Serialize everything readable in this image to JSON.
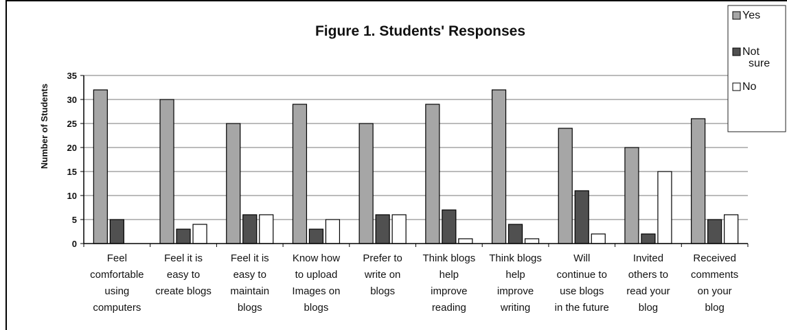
{
  "chart_data": {
    "type": "bar",
    "title": "Figure 1.  Students' Responses",
    "ylabel": "Number of Students",
    "xlabel": "",
    "ylim": [
      0,
      35
    ],
    "yticks": [
      0,
      5,
      10,
      15,
      20,
      25,
      30,
      35
    ],
    "grid": true,
    "legend_position": "top-right",
    "categories": [
      "Feel comfortable using computers",
      "Feel it is easy to create blogs",
      "Feel it is easy to maintain blogs",
      "Know how to upload Images on blogs",
      "Prefer to write on blogs",
      "Think blogs help improve reading",
      "Think blogs help improve writing",
      "Will continue to use blogs in the future",
      "Invited others to read your blog",
      "Received comments on your blog"
    ],
    "category_lines": [
      [
        "Feel",
        "comfortable",
        "using",
        "computers"
      ],
      [
        "Feel it is",
        "easy to",
        "create blogs"
      ],
      [
        "Feel it is",
        "easy to",
        "maintain",
        "blogs"
      ],
      [
        "Know how",
        "to upload",
        "Images on",
        "blogs"
      ],
      [
        "Prefer to",
        "write on",
        "blogs"
      ],
      [
        "Think blogs",
        "help",
        "improve",
        "reading"
      ],
      [
        "Think blogs",
        "help",
        "improve",
        "writing"
      ],
      [
        "Will",
        "continue to",
        "use blogs",
        "in the future"
      ],
      [
        "Invited",
        "others to",
        "read your",
        "blog"
      ],
      [
        "Received",
        "comments",
        "on your",
        "blog"
      ]
    ],
    "series": [
      {
        "name": "Yes",
        "color": "#a6a6a6",
        "values": [
          32,
          30,
          25,
          29,
          25,
          29,
          32,
          24,
          20,
          26
        ]
      },
      {
        "name": "Not sure",
        "color": "#505050",
        "values": [
          5,
          3,
          6,
          3,
          6,
          7,
          4,
          11,
          2,
          5
        ]
      },
      {
        "name": "No",
        "color": "#ffffff",
        "values": [
          0,
          4,
          6,
          5,
          6,
          1,
          1,
          2,
          15,
          6
        ]
      }
    ],
    "legend_lines": [
      [
        "Yes"
      ],
      [
        "Not",
        "sure"
      ],
      [
        "No"
      ]
    ]
  }
}
